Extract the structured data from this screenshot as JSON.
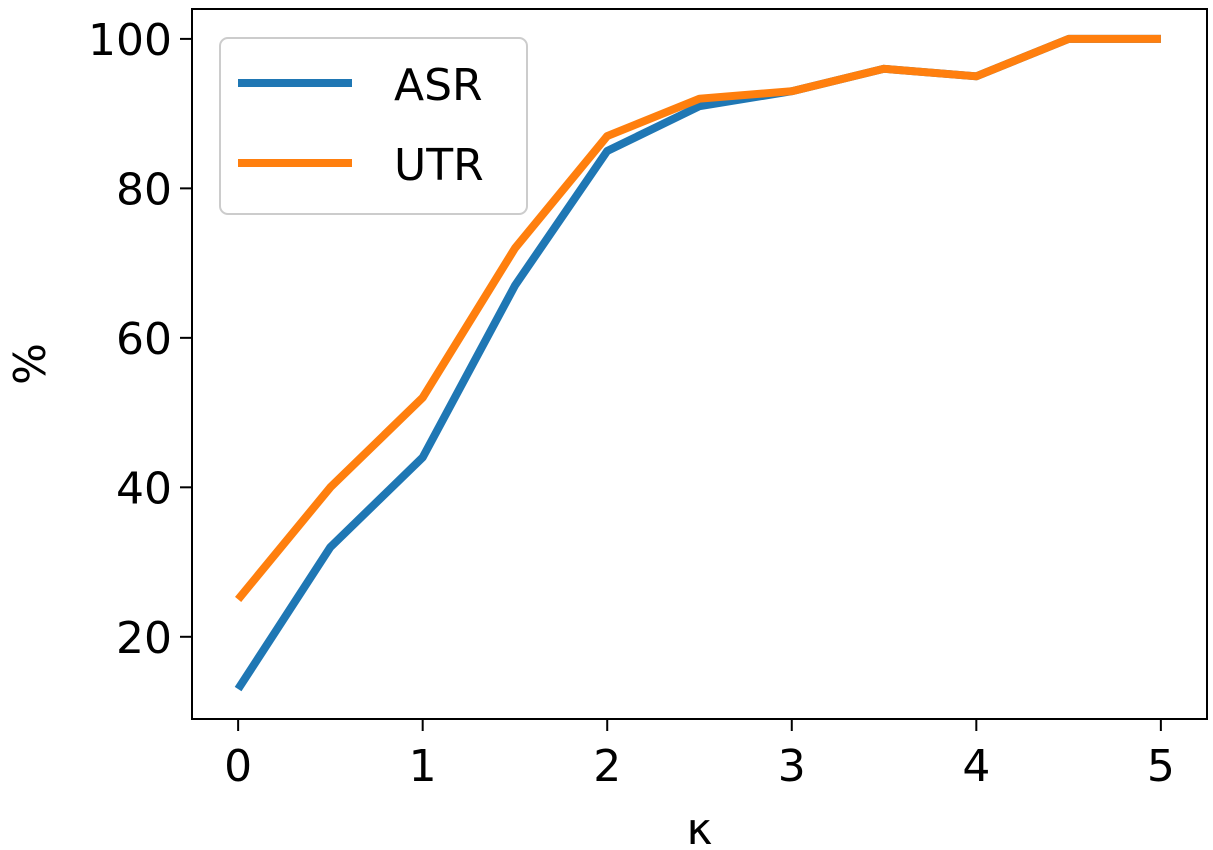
{
  "chart_data": {
    "type": "line",
    "xlabel": "κ",
    "ylabel": "%",
    "xlim": [
      -0.25,
      5.25
    ],
    "ylim": [
      9,
      104
    ],
    "xticks": [
      0,
      1,
      2,
      3,
      4,
      5
    ],
    "yticks": [
      20,
      40,
      60,
      80,
      100
    ],
    "grid": false,
    "legend_position": "top-left",
    "x": [
      0,
      0.5,
      1,
      1.5,
      2,
      2.5,
      3,
      3.5,
      4,
      4.5,
      5
    ],
    "series": [
      {
        "name": "ASR",
        "color": "#1f77b4",
        "values": [
          13,
          32,
          44,
          67,
          85,
          91,
          93,
          96,
          95,
          100,
          100
        ]
      },
      {
        "name": "UTR",
        "color": "#ff7f0e",
        "values": [
          25,
          40,
          52,
          72,
          87,
          92,
          93,
          96,
          95,
          100,
          100
        ]
      }
    ]
  }
}
